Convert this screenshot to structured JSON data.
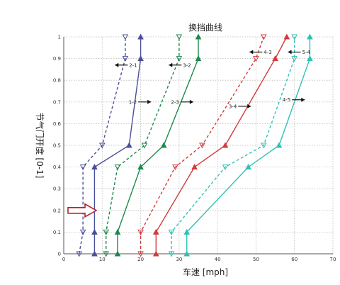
{
  "chart_data": {
    "type": "line",
    "title": "换挡曲线",
    "xlabel": "车速 [mph]",
    "ylabel": "节气门开度 [0-1]",
    "xlim": [
      0,
      70
    ],
    "ylim": [
      0,
      1
    ],
    "xticks": [
      "0",
      "10",
      "20",
      "30",
      "40",
      "50",
      "60",
      "70"
    ],
    "yticks": [
      "0",
      "0.1",
      "0.2",
      "0.3",
      "0.4",
      "0.5",
      "0.6",
      "0.7",
      "0.8",
      "0.9",
      "1"
    ],
    "grid": true,
    "series": [
      {
        "color": "#4a4f9a",
        "style": "dashed",
        "marker": "down",
        "points": [
          [
            4,
            0
          ],
          [
            5,
            0.1
          ],
          [
            5,
            0.4
          ],
          [
            10,
            0.5
          ],
          [
            16,
            0.9
          ],
          [
            16,
            1
          ]
        ]
      },
      {
        "color": "#4a4f9a",
        "style": "solid",
        "marker": "up",
        "points": [
          [
            8,
            0
          ],
          [
            8,
            0.1
          ],
          [
            8,
            0.4
          ],
          [
            17,
            0.5
          ],
          [
            20,
            0.9
          ],
          [
            20,
            1
          ]
        ]
      },
      {
        "color": "#1b8a4c",
        "style": "dashed",
        "marker": "down",
        "points": [
          [
            11,
            0
          ],
          [
            11,
            0.1
          ],
          [
            14,
            0.4
          ],
          [
            21,
            0.5
          ],
          [
            30,
            0.9
          ],
          [
            30,
            1
          ]
        ]
      },
      {
        "color": "#1b8a4c",
        "style": "solid",
        "marker": "up",
        "points": [
          [
            14,
            0
          ],
          [
            14,
            0.1
          ],
          [
            20,
            0.4
          ],
          [
            26,
            0.5
          ],
          [
            35,
            0.9
          ],
          [
            35,
            1
          ]
        ]
      },
      {
        "color": "#d23b3b",
        "style": "dashed",
        "marker": "down",
        "points": [
          [
            20,
            0
          ],
          [
            20,
            0.1
          ],
          [
            29,
            0.4
          ],
          [
            36,
            0.5
          ],
          [
            50,
            0.9
          ],
          [
            52,
            1
          ]
        ]
      },
      {
        "color": "#d23b3b",
        "style": "solid",
        "marker": "up",
        "points": [
          [
            24,
            0
          ],
          [
            24,
            0.1
          ],
          [
            34,
            0.4
          ],
          [
            42,
            0.5
          ],
          [
            55,
            0.9
          ],
          [
            58,
            1
          ]
        ]
      },
      {
        "color": "#2fc1b5",
        "style": "dashed",
        "marker": "down",
        "points": [
          [
            28,
            0
          ],
          [
            28,
            0.1
          ],
          [
            42,
            0.4
          ],
          [
            52,
            0.5
          ],
          [
            60,
            0.9
          ],
          [
            60,
            1
          ]
        ]
      },
      {
        "color": "#2fc1b5",
        "style": "solid",
        "marker": "up",
        "points": [
          [
            32,
            0
          ],
          [
            32,
            0.1
          ],
          [
            48,
            0.4
          ],
          [
            56,
            0.5
          ],
          [
            64,
            0.9
          ],
          [
            64,
            1
          ]
        ]
      }
    ],
    "annotations": [
      {
        "text": "1-2",
        "x": 19,
        "y": 0.7,
        "arrow": "right"
      },
      {
        "text": "2-1",
        "x": 17,
        "y": 0.87,
        "arrow": "left"
      },
      {
        "text": "2-3",
        "x": 30,
        "y": 0.7,
        "arrow": "right"
      },
      {
        "text": "3-2",
        "x": 31,
        "y": 0.87,
        "arrow": "left"
      },
      {
        "text": "3-4",
        "x": 45,
        "y": 0.68,
        "arrow": "right"
      },
      {
        "text": "4-3",
        "x": 52,
        "y": 0.93,
        "arrow": "left"
      },
      {
        "text": "4-5",
        "x": 59,
        "y": 0.71,
        "arrow": "right"
      },
      {
        "text": "5-4",
        "x": 62,
        "y": 0.93,
        "arrow": "left"
      }
    ]
  }
}
